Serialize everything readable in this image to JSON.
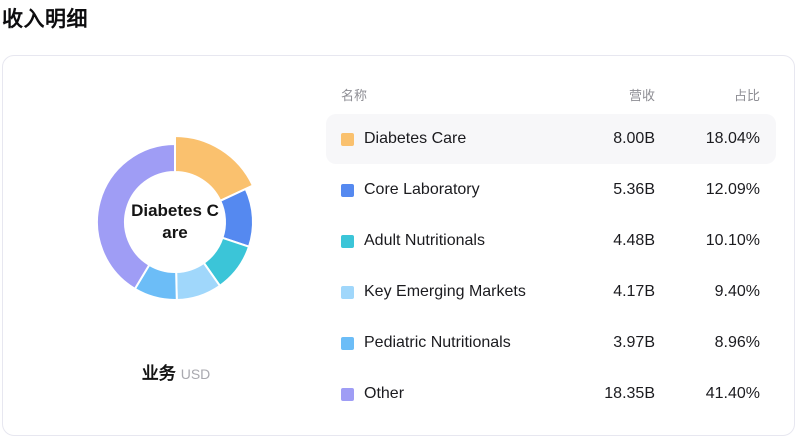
{
  "page": {
    "title": "收入明细"
  },
  "card": {
    "chart": {
      "center_label_lines": [
        "Diabetes C",
        "are"
      ],
      "axis_label": "业务",
      "unit_label": "USD"
    },
    "table": {
      "headers": {
        "name": "名称",
        "revenue": "营收",
        "share": "占比"
      },
      "rows": [
        {
          "name": "Diabetes Care",
          "revenue": "8.00B",
          "share": "18.04%",
          "color": "#FAC16E",
          "highlighted": true
        },
        {
          "name": "Core Laboratory",
          "revenue": "5.36B",
          "share": "12.09%",
          "color": "#5589F0",
          "highlighted": false
        },
        {
          "name": "Adult Nutritionals",
          "revenue": "4.48B",
          "share": "10.10%",
          "color": "#3BC5D8",
          "highlighted": false
        },
        {
          "name": "Key Emerging Markets",
          "revenue": "4.17B",
          "share": "9.40%",
          "color": "#A0D7FB",
          "highlighted": false
        },
        {
          "name": "Pediatric Nutritionals",
          "revenue": "3.97B",
          "share": "8.96%",
          "color": "#6CBDF7",
          "highlighted": false
        },
        {
          "name": "Other",
          "revenue": "18.35B",
          "share": "41.40%",
          "color": "#9F9DF5",
          "highlighted": false
        }
      ]
    }
  },
  "chart_data": {
    "type": "pie",
    "subtype": "donut",
    "title": "收入明细",
    "dimension_label": "业务",
    "unit": "USD",
    "categories": [
      "Diabetes Care",
      "Core Laboratory",
      "Adult Nutritionals",
      "Key Emerging Markets",
      "Pediatric Nutritionals",
      "Other"
    ],
    "values_billions": [
      8.0,
      5.36,
      4.48,
      4.17,
      3.97,
      18.35
    ],
    "percentages": [
      18.04,
      12.09,
      10.1,
      9.4,
      8.96,
      41.4
    ],
    "colors": [
      "#FAC16E",
      "#5589F0",
      "#3BC5D8",
      "#A0D7FB",
      "#6CBDF7",
      "#9F9DF5"
    ],
    "highlighted_index": 0,
    "center_label": "Diabetes Care",
    "start_angle_deg": 0,
    "direction": "clockwise",
    "legend_position": "right-table",
    "slice_gap_color": "#ffffff"
  }
}
